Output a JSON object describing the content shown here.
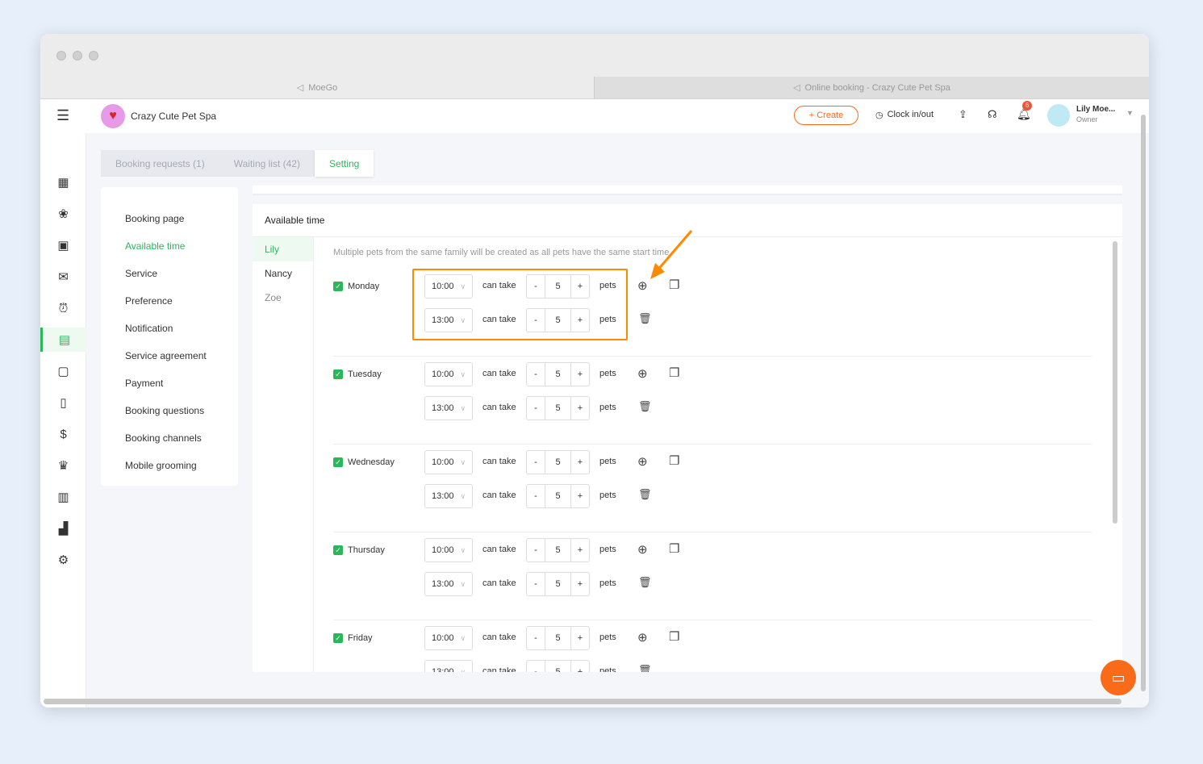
{
  "browser": {
    "tabs": [
      {
        "label": "MoeGo"
      },
      {
        "label": "Online booking - Crazy Cute Pet Spa"
      }
    ]
  },
  "header": {
    "business": "Crazy Cute Pet Spa",
    "create": "+ Create",
    "clock": "Clock in/out",
    "notifications": "6",
    "user": "Lily Moe...",
    "role": "Owner"
  },
  "tabs": [
    {
      "label": "Booking requests (1)"
    },
    {
      "label": "Waiting list (42)"
    },
    {
      "label": "Setting"
    }
  ],
  "menu": [
    "Booking page",
    "Available time",
    "Service",
    "Preference",
    "Notification",
    "Service agreement",
    "Payment",
    "Booking questions",
    "Booking channels",
    "Mobile grooming"
  ],
  "card": {
    "title": "Available time",
    "note": "Multiple pets from the same family will be created as all pets have the same start time.",
    "pets": [
      "Lily",
      "Nancy",
      "Zoe"
    ],
    "can_take": "can take",
    "pets_label": "pets",
    "days": [
      {
        "name": "Monday",
        "checked": true,
        "slots": [
          {
            "time": "10:00",
            "count": "5"
          },
          {
            "time": "13:00",
            "count": "5"
          }
        ]
      },
      {
        "name": "Tuesday",
        "checked": true,
        "slots": [
          {
            "time": "10:00",
            "count": "5"
          },
          {
            "time": "13:00",
            "count": "5"
          }
        ]
      },
      {
        "name": "Wednesday",
        "checked": true,
        "slots": [
          {
            "time": "10:00",
            "count": "5"
          },
          {
            "time": "13:00",
            "count": "5"
          }
        ]
      },
      {
        "name": "Thursday",
        "checked": true,
        "slots": [
          {
            "time": "10:00",
            "count": "5"
          },
          {
            "time": "13:00",
            "count": "5"
          }
        ]
      },
      {
        "name": "Friday",
        "checked": true,
        "slots": [
          {
            "time": "10:00",
            "count": "5"
          },
          {
            "time": "13:00",
            "count": "5"
          }
        ]
      }
    ]
  },
  "colors": {
    "accent": "#2bb65a",
    "brand": "#f96b18",
    "highlight": "#ff8a00"
  }
}
